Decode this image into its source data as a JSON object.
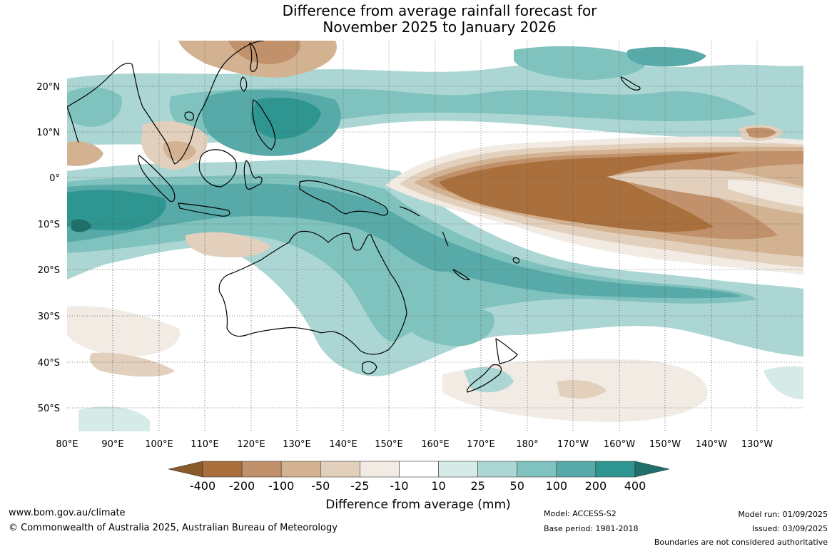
{
  "title": {
    "line1": "Difference from average rainfall forecast for",
    "line2": "November 2025 to January 2026"
  },
  "latitude_labels": [
    "20°N",
    "10°N",
    "0°",
    "10°S",
    "20°S",
    "30°S",
    "40°S",
    "50°S"
  ],
  "longitude_labels": [
    "80°E",
    "90°E",
    "100°E",
    "110°E",
    "120°E",
    "130°E",
    "140°E",
    "150°E",
    "160°E",
    "170°E",
    "180°",
    "170°W",
    "160°W",
    "150°W",
    "140°W",
    "130°W"
  ],
  "colorbar": {
    "labels": [
      "-400",
      "-200",
      "-100",
      "-50",
      "-25",
      "-10",
      "10",
      "25",
      "50",
      "100",
      "200",
      "400"
    ],
    "colors": [
      "#8a5a2b",
      "#a96f3c",
      "#c0916a",
      "#d3b292",
      "#e3d0bc",
      "#f1ebe4",
      "#ffffff",
      "#d6eae8",
      "#abd6d3",
      "#80c2be",
      "#57aaa7",
      "#2e9590",
      "#1f6f6a"
    ],
    "title": "Difference from average (mm)"
  },
  "footer": {
    "url": "www.bom.gov.au/climate",
    "copyright": "© Commonwealth of Australia 2025, Australian Bureau of Meteorology",
    "model": "Model: ACCESS-S2",
    "base_period": "Base period: 1981-2018",
    "model_run": "Model run: 01/09/2025",
    "issued": "Issued: 03/09/2025",
    "disclaimer": "Boundaries are not considered authoritative"
  }
}
